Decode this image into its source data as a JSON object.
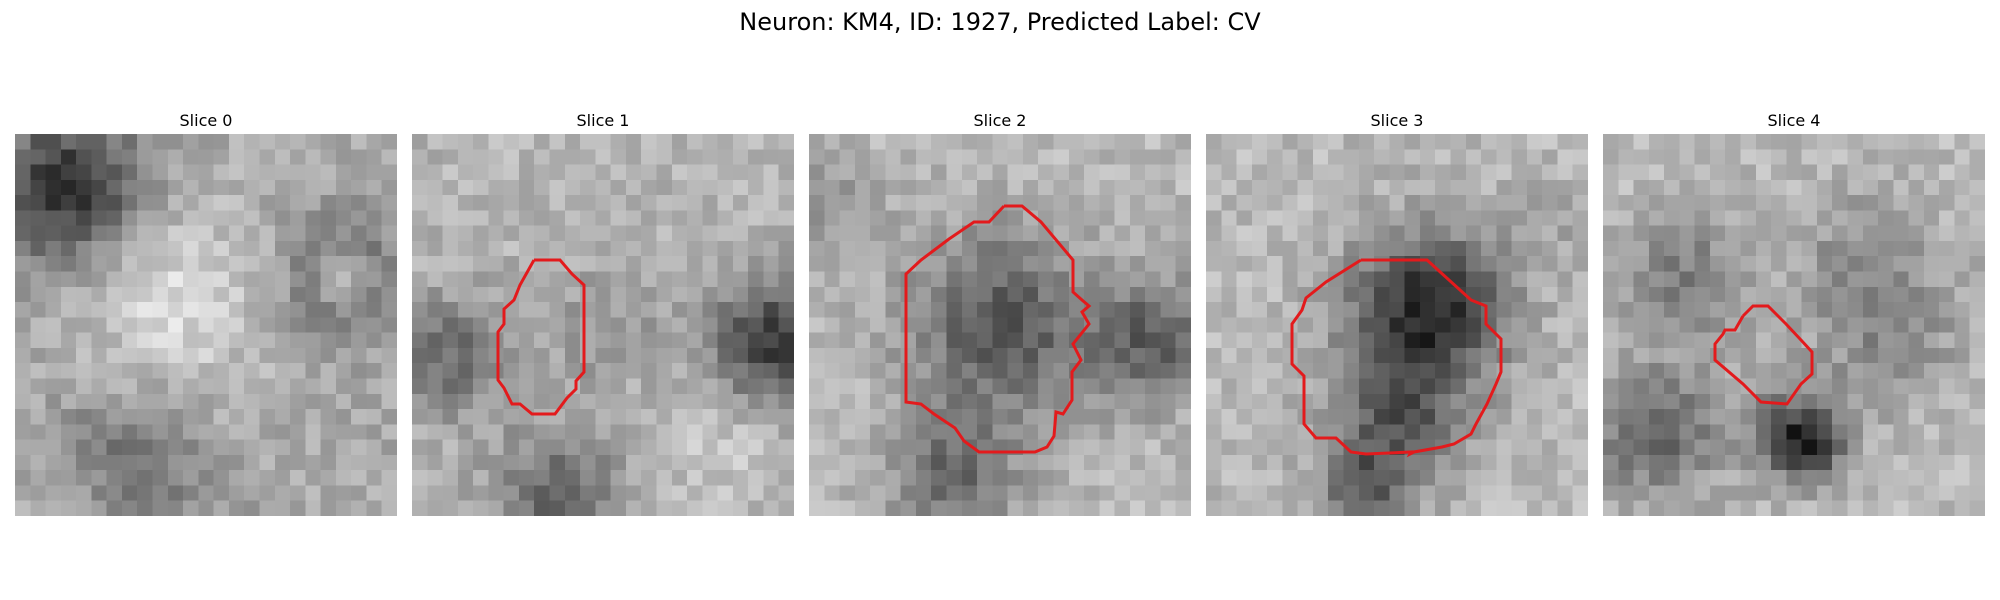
{
  "figure": {
    "title": "Neuron: KM4, ID: 1927, Predicted Label: CV",
    "outline_color": "#e31a1c",
    "colormap": "grayscale",
    "slices": [
      {
        "title": "Slice 0",
        "has_outline": false
      },
      {
        "title": "Slice 1",
        "has_outline": true
      },
      {
        "title": "Slice 2",
        "has_outline": true
      },
      {
        "title": "Slice 3",
        "has_outline": true
      },
      {
        "title": "Slice 4",
        "has_outline": true
      }
    ]
  }
}
